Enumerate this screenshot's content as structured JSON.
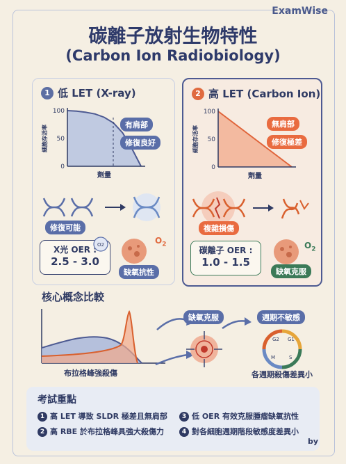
{
  "brand": "ExamWise",
  "title": "碳離子放射生物特性",
  "subtitle": "(Carbon Ion Radiobiology)",
  "left_panel": {
    "number": "1",
    "heading": "低 LET (X-ray)",
    "callout_1": "有肩部",
    "callout_2": "修復良好",
    "repair_label": "修復可能",
    "oer_label": "X光 OER :",
    "oer_value": "2.5 - 3.0",
    "hypoxia_label": "缺氧抗性",
    "o2_label": "O",
    "o2_sub": "2",
    "o2_bubble": "O2"
  },
  "right_panel": {
    "number": "2",
    "heading": "高 LET (Carbon Ion)",
    "callout_1": "無肩部",
    "callout_2": "修復極差",
    "damage_label": "複雜損傷",
    "oer_label": "碳離子 OER :",
    "oer_value": "1.0 - 1.5",
    "hypoxia_label": "缺氧克服",
    "o2_label": "O",
    "o2_sub": "2"
  },
  "chart_data": [
    {
      "type": "line",
      "ylabel": "細胞存活率",
      "xlabel": "劑量",
      "yticks": [
        "0",
        "50",
        "100"
      ],
      "ylim": [
        0,
        100
      ],
      "x": [
        0,
        0.5,
        1,
        1.5,
        2,
        2.5,
        3,
        3.5,
        4
      ],
      "series": [
        {
          "values": [
            100,
            99,
            97,
            94,
            88,
            78,
            60,
            32,
            0
          ]
        }
      ]
    },
    {
      "type": "line",
      "ylabel": "細胞存活率",
      "xlabel": "劑量",
      "yticks": [
        "0",
        "50",
        "100"
      ],
      "ylim": [
        0,
        100
      ],
      "x": [
        0,
        1,
        2,
        3,
        4
      ],
      "series": [
        {
          "values": [
            100,
            75,
            50,
            25,
            0
          ]
        }
      ]
    }
  ],
  "core": {
    "heading": "核心概念比較",
    "bragg_label": "布拉格峰強殺傷",
    "hypoxia_label": "缺氧克服",
    "cycle_label": "週期不敏感",
    "cycle_caption": "各週期殺傷差異小",
    "cycle_phases": [
      "G2",
      "G1",
      "M",
      "S"
    ]
  },
  "exam": {
    "heading": "考試重點",
    "items": [
      {
        "num": "1",
        "text": "高 LET 導致 SLDR 極差且無肩部"
      },
      {
        "num": "2",
        "text": "高 RBE 於布拉格峰具強大殺傷力"
      },
      {
        "num": "3",
        "text": "低 OER 有效克服腫瘤缺氧抗性"
      },
      {
        "num": "4",
        "text": "對各細胞週期階段敏感度差異小"
      }
    ]
  },
  "by_label": "by",
  "colors": {
    "blue": "#5a6ea8",
    "orange": "#e96b40",
    "navy": "#2f3a63",
    "green": "#3b7a58"
  }
}
